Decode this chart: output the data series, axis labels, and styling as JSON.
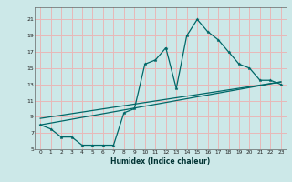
{
  "title": "",
  "xlabel": "Humidex (Indice chaleur)",
  "bg_color": "#cce8e8",
  "grid_color": "#e8b8b8",
  "line_color": "#006868",
  "xlim": [
    -0.5,
    23.5
  ],
  "ylim": [
    5.0,
    22.5
  ],
  "xticks": [
    0,
    1,
    2,
    3,
    4,
    5,
    6,
    7,
    8,
    9,
    10,
    11,
    12,
    13,
    14,
    15,
    16,
    17,
    18,
    19,
    20,
    21,
    22,
    23
  ],
  "yticks": [
    5,
    7,
    9,
    11,
    13,
    15,
    17,
    19,
    21
  ],
  "main_x": [
    0,
    1,
    2,
    3,
    4,
    5,
    6,
    7,
    8,
    9,
    10,
    11,
    12,
    13,
    14,
    15,
    16,
    17,
    18,
    19,
    20,
    21,
    22,
    23
  ],
  "main_y": [
    8.0,
    7.5,
    6.5,
    6.5,
    5.5,
    5.5,
    5.5,
    5.5,
    9.5,
    10.0,
    15.5,
    16.0,
    17.5,
    12.5,
    19.0,
    21.0,
    19.5,
    18.5,
    17.0,
    15.5,
    15.0,
    13.5,
    13.5,
    13.0
  ],
  "line2_x": [
    0,
    23
  ],
  "line2_y": [
    8.0,
    13.3
  ],
  "line3_x": [
    0,
    23
  ],
  "line3_y": [
    8.8,
    13.3
  ]
}
